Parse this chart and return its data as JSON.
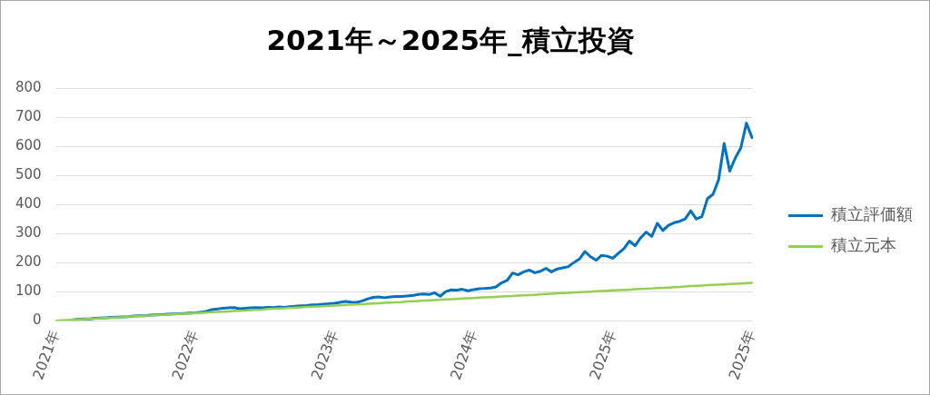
{
  "chart_data": {
    "type": "line",
    "title": "2021年～2025年_積立投資",
    "categories": [
      "2021年",
      null,
      null,
      null,
      null,
      null,
      null,
      null,
      null,
      null,
      null,
      null,
      null,
      null,
      null,
      null,
      null,
      null,
      null,
      null,
      null,
      null,
      null,
      null,
      null,
      "2022年",
      null,
      null,
      null,
      null,
      null,
      null,
      null,
      null,
      null,
      null,
      null,
      null,
      null,
      null,
      null,
      null,
      null,
      null,
      null,
      null,
      null,
      null,
      null,
      null,
      "2023年",
      null,
      null,
      null,
      null,
      null,
      null,
      null,
      null,
      null,
      null,
      null,
      null,
      null,
      null,
      null,
      null,
      null,
      null,
      null,
      null,
      null,
      null,
      null,
      null,
      "2024年",
      null,
      null,
      null,
      null,
      null,
      null,
      null,
      null,
      null,
      null,
      null,
      null,
      null,
      null,
      null,
      null,
      null,
      null,
      null,
      null,
      null,
      null,
      null,
      null,
      "2025年",
      null,
      null,
      null,
      null,
      null,
      null,
      null,
      null,
      null,
      null,
      null,
      null,
      null,
      null,
      null,
      null,
      null,
      null,
      null,
      null,
      null,
      null,
      null,
      null,
      "2025年"
    ],
    "series": [
      {
        "name": "積立評価額",
        "color": "#0070c0",
        "values": [
          null,
          null,
          null,
          3,
          5,
          6,
          6,
          8,
          9,
          10,
          11,
          12,
          13,
          14,
          16,
          17,
          17,
          19,
          20,
          21,
          22,
          23,
          24,
          25,
          26,
          27,
          29,
          32,
          38,
          40,
          43,
          44,
          45,
          41,
          43,
          44,
          45,
          44,
          46,
          45,
          47,
          46,
          48,
          50,
          51,
          52,
          54,
          55,
          57,
          58,
          60,
          63,
          66,
          64,
          63,
          68,
          75,
          80,
          82,
          79,
          82,
          83,
          83,
          85,
          86,
          90,
          92,
          90,
          96,
          84,
          100,
          106,
          105,
          108,
          103,
          107,
          110,
          111,
          112,
          116,
          130,
          138,
          164,
          158,
          168,
          174,
          165,
          170,
          180,
          168,
          178,
          182,
          186,
          200,
          212,
          238,
          220,
          208,
          225,
          222,
          215,
          232,
          248,
          274,
          258,
          285,
          305,
          290,
          335,
          310,
          328,
          337,
          342,
          350,
          378,
          350,
          358,
          420,
          435,
          485,
          610,
          515,
          560,
          595,
          680,
          630
        ]
      },
      {
        "name": "積立元本",
        "color": "#92d050",
        "values": [
          0,
          1,
          2,
          3,
          4,
          5,
          6,
          7,
          8,
          9,
          10,
          11,
          12,
          14,
          15,
          16,
          17,
          18,
          19,
          20,
          21,
          22,
          23,
          24,
          25,
          26,
          27,
          28,
          29,
          30,
          31,
          32,
          33,
          34,
          35,
          36,
          37,
          38,
          40,
          41,
          42,
          43,
          44,
          45,
          46,
          47,
          48,
          49,
          50,
          51,
          52,
          53,
          54,
          55,
          56,
          57,
          58,
          59,
          60,
          61,
          62,
          63,
          64,
          66,
          67,
          68,
          69,
          70,
          71,
          72,
          73,
          74,
          75,
          76,
          77,
          78,
          79,
          80,
          81,
          82,
          83,
          84,
          85,
          86,
          87,
          88,
          89,
          90,
          92,
          93,
          94,
          95,
          96,
          97,
          98,
          99,
          100,
          101,
          102,
          103,
          104,
          105,
          106,
          107,
          108,
          109,
          110,
          111,
          112,
          113,
          114,
          115,
          116,
          118,
          119,
          120,
          121,
          122,
          123,
          124,
          125,
          126,
          127,
          128,
          129,
          130
        ]
      }
    ],
    "ylim": [
      0,
      800
    ],
    "yticks": [
      0,
      100,
      200,
      300,
      400,
      500,
      600,
      700,
      800
    ],
    "grid": "y",
    "legend": "right",
    "marker": "none",
    "line_style": "solid"
  }
}
